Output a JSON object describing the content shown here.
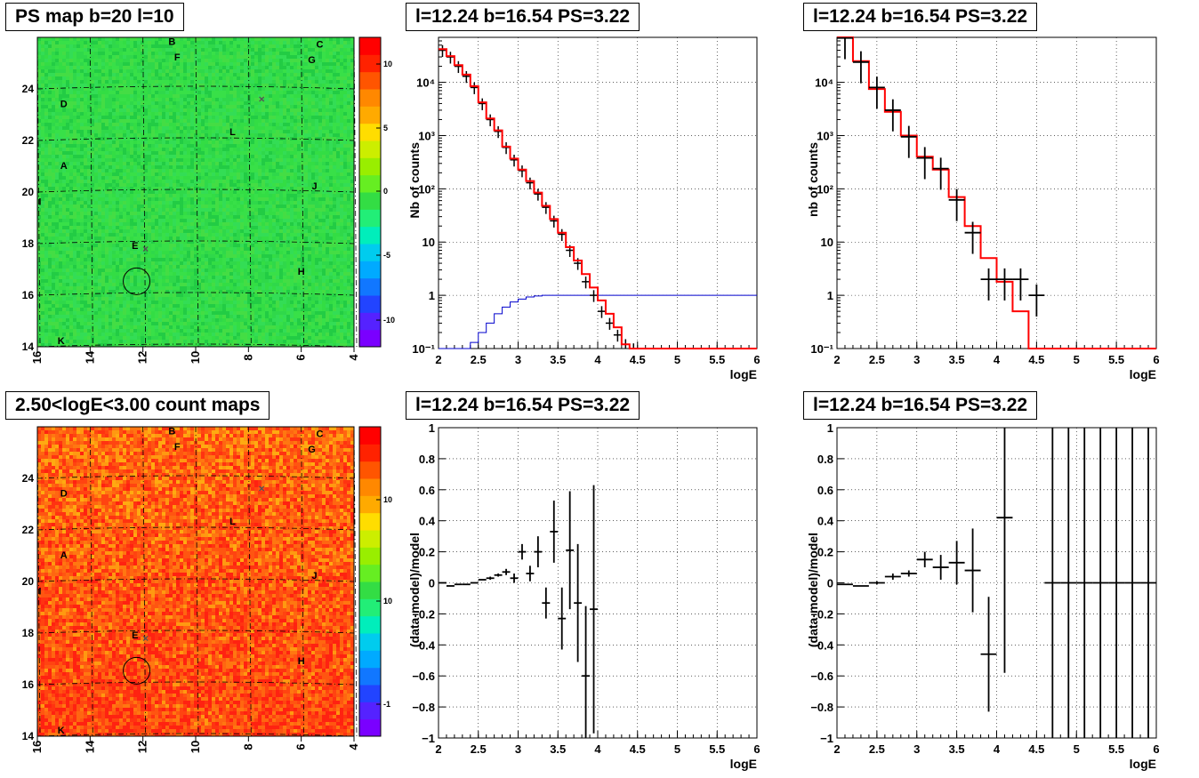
{
  "titles": {
    "psmap": "PS map b=20 l=10",
    "countmap": "2.50<logE<3.00 count maps",
    "spec1": "l=12.24 b=16.54 PS=3.22",
    "spec2": "l=12.24 b=16.54 PS=3.22",
    "res1": "l=12.24 b=16.54 PS=3.22",
    "res2": "l=12.24 b=16.54 PS=3.22"
  },
  "map_axes": {
    "x_ticks": [
      "16",
      "14",
      "12",
      "10",
      "8",
      "6",
      "4"
    ],
    "y_ticks": [
      "14",
      "16",
      "18",
      "20",
      "22",
      "24"
    ]
  },
  "psmap_colorbar_ticks": [
    "10",
    "5",
    "0",
    "-5",
    "-10"
  ],
  "countmap_colorbar_ticks": [
    "10",
    "1",
    "10",
    "-1"
  ],
  "map_labels": [
    "A",
    "B",
    "C",
    "D",
    "E",
    "F",
    "G",
    "H",
    "I",
    "J",
    "K",
    "L"
  ],
  "colors": {
    "model_line": "#ff0000",
    "acceptance_line": "#0000cc",
    "data": "#000000",
    "psmap_background": "#33dd44",
    "countmap_background": "#ff5522"
  },
  "chart_data": [
    {
      "type": "heatmap",
      "title": "PS map b=20 l=10",
      "xlim": [
        16,
        4
      ],
      "ylim": [
        14,
        26
      ],
      "zlim": [
        -13,
        13
      ],
      "grid": true,
      "sources": [
        {
          "label": "A",
          "l": 15.0,
          "b": 20.9
        },
        {
          "label": "B",
          "l": 10.9,
          "b": 25.7
        },
        {
          "label": "C",
          "l": 5.3,
          "b": 25.6
        },
        {
          "label": "D",
          "l": 15.0,
          "b": 23.3
        },
        {
          "label": "E",
          "l": 12.3,
          "b": 17.8
        },
        {
          "label": "F",
          "l": 10.7,
          "b": 25.1
        },
        {
          "label": "G",
          "l": 5.6,
          "b": 25.0
        },
        {
          "label": "H",
          "l": 6.0,
          "b": 16.8
        },
        {
          "label": "I",
          "l": 15.9,
          "b": 19.5
        },
        {
          "label": "J",
          "l": 5.5,
          "b": 20.1
        },
        {
          "label": "K",
          "l": 15.1,
          "b": 14.1
        },
        {
          "label": "L",
          "l": 8.6,
          "b": 22.2
        }
      ]
    },
    {
      "type": "line",
      "title": "l=12.24 b=16.54 PS=3.22",
      "xlabel": "logE",
      "ylabel": "Nb of counts",
      "xlim": [
        2,
        6
      ],
      "ylim": [
        0.1,
        70000
      ],
      "yscale": "log",
      "grid": true,
      "series": [
        {
          "values": [
            [
              2.05,
              40000,
              0.1
            ],
            [
              2.15,
              30000,
              0.1
            ],
            [
              2.25,
              20000,
              0.1
            ],
            [
              2.35,
              13000,
              0.1
            ],
            [
              2.45,
              8000,
              0.1
            ],
            [
              2.55,
              4000,
              0.1
            ],
            [
              2.65,
              2000,
              0.1
            ],
            [
              2.75,
              1200,
              0.1
            ],
            [
              2.85,
              600,
              0.1
            ],
            [
              2.95,
              350,
              0.1
            ],
            [
              3.05,
              220,
              0.1
            ],
            [
              3.15,
              130,
              0.1
            ],
            [
              3.25,
              80,
              0.1
            ],
            [
              3.35,
              45,
              0.1
            ],
            [
              3.45,
              25,
              0.1
            ],
            [
              3.55,
              14,
              0.1
            ],
            [
              3.65,
              7,
              0.1
            ],
            [
              3.75,
              4,
              0.1
            ],
            [
              3.85,
              1.8,
              0.1
            ],
            [
              3.95,
              1,
              0.1
            ],
            [
              4.05,
              0.5,
              0.1
            ],
            [
              4.15,
              0.3,
              0.1
            ],
            [
              4.25,
              0.18,
              0.1
            ],
            [
              4.35,
              0.12,
              0.1
            ],
            [
              4.45,
              0.1,
              0.1
            ]
          ]
        },
        {
          "values": [
            [
              2.05,
              0.1
            ],
            [
              2.15,
              0.1
            ],
            [
              2.25,
              0.1
            ],
            [
              2.35,
              0.1
            ],
            [
              2.45,
              0.13
            ],
            [
              2.55,
              0.2
            ],
            [
              2.65,
              0.3
            ],
            [
              2.75,
              0.45
            ],
            [
              2.85,
              0.6
            ],
            [
              2.95,
              0.75
            ],
            [
              3.05,
              0.85
            ],
            [
              3.15,
              0.93
            ],
            [
              3.25,
              0.97
            ],
            [
              3.35,
              1.0
            ],
            [
              3.45,
              1.0
            ],
            [
              3.55,
              1.0
            ],
            [
              3.65,
              1.0
            ],
            [
              3.75,
              1.0
            ],
            [
              3.85,
              1.0
            ],
            [
              3.95,
              1.0
            ],
            [
              4.05,
              1.0
            ],
            [
              4.15,
              1.0
            ],
            [
              4.25,
              1.0
            ]
          ]
        },
        {
          "values": [
            [
              2.05,
              42000
            ],
            [
              2.15,
              31000
            ],
            [
              2.25,
              21000
            ],
            [
              2.35,
              14000
            ],
            [
              2.45,
              8500
            ],
            [
              2.55,
              4200
            ],
            [
              2.65,
              2100
            ],
            [
              2.75,
              1250
            ],
            [
              2.85,
              620
            ],
            [
              2.95,
              370
            ],
            [
              3.05,
              230
            ],
            [
              3.15,
              140
            ],
            [
              3.25,
              85
            ],
            [
              3.35,
              48
            ],
            [
              3.45,
              27
            ],
            [
              3.55,
              15
            ],
            [
              3.65,
              8
            ],
            [
              3.75,
              4.5
            ],
            [
              3.85,
              2.5
            ],
            [
              3.95,
              1.4
            ],
            [
              4.05,
              0.8
            ],
            [
              4.15,
              0.45
            ],
            [
              4.25,
              0.25
            ],
            [
              4.35,
              0.12
            ],
            [
              4.45,
              0.1
            ]
          ]
        }
      ]
    },
    {
      "type": "line",
      "title": "l=12.24 b=16.54 PS=3.22",
      "xlabel": "logE",
      "ylabel": "nb of counts",
      "xlim": [
        2,
        6
      ],
      "ylim": [
        0.1,
        70000
      ],
      "yscale": "log",
      "grid": true,
      "series": [
        {
          "values": [
            [
              2.1,
              70000
            ],
            [
              2.3,
              25000
            ],
            [
              2.5,
              7500
            ],
            [
              2.7,
              2800
            ],
            [
              2.9,
              1000
            ],
            [
              3.1,
              400
            ],
            [
              3.3,
              230
            ],
            [
              3.5,
              70
            ],
            [
              3.7,
              20
            ],
            [
              3.9,
              5
            ],
            [
              4.1,
              1.8
            ],
            [
              4.3,
              0.5
            ],
            [
              4.5,
              0.1
            ]
          ]
        },
        {
          "values": [
            [
              2.1,
              68000
            ],
            [
              2.3,
              24000
            ],
            [
              2.5,
              8000
            ],
            [
              2.7,
              3000
            ],
            [
              2.9,
              950
            ],
            [
              3.1,
              380
            ],
            [
              3.3,
              240
            ],
            [
              3.5,
              62
            ],
            [
              3.7,
              15
            ],
            [
              3.9,
              2
            ],
            [
              4.1,
              2
            ],
            [
              4.3,
              2
            ],
            [
              4.5,
              1
            ]
          ]
        }
      ]
    },
    {
      "type": "scatter",
      "title": "l=12.24 b=16.54 PS=3.22",
      "xlabel": "logE",
      "ylabel": "(data-model)/model",
      "xlim": [
        2,
        6
      ],
      "ylim": [
        -1,
        1
      ],
      "grid": true,
      "series": [
        {
          "values": [
            [
              2.05,
              0.0,
              0.0
            ],
            [
              2.15,
              -0.02,
              0.0
            ],
            [
              2.25,
              -0.01,
              0.0
            ],
            [
              2.35,
              -0.01,
              0.0
            ],
            [
              2.45,
              0.0,
              0.0
            ],
            [
              2.55,
              0.02,
              0.0
            ],
            [
              2.65,
              0.03,
              0.01
            ],
            [
              2.75,
              0.05,
              0.01
            ],
            [
              2.85,
              0.07,
              0.02
            ],
            [
              2.95,
              0.03,
              0.03
            ],
            [
              3.05,
              0.2,
              0.05
            ],
            [
              3.15,
              0.06,
              0.05
            ],
            [
              3.25,
              0.2,
              0.1
            ],
            [
              3.35,
              -0.13,
              0.1
            ],
            [
              3.45,
              0.33,
              0.2
            ],
            [
              3.55,
              -0.23,
              0.2
            ],
            [
              3.65,
              0.21,
              0.38
            ],
            [
              3.75,
              -0.13,
              0.38
            ],
            [
              3.85,
              -0.6,
              0.45
            ],
            [
              3.95,
              -0.17,
              0.8
            ]
          ]
        }
      ]
    },
    {
      "type": "scatter",
      "title": "l=12.24 b=16.54 PS=3.22",
      "xlabel": "logE",
      "ylabel": "(data-model)/model",
      "xlim": [
        2,
        6
      ],
      "ylim": [
        -1,
        1
      ],
      "grid": true,
      "series": [
        {
          "values": [
            [
              2.1,
              -0.01,
              0.0
            ],
            [
              2.3,
              -0.02,
              0.0
            ],
            [
              2.5,
              0.0,
              0.01
            ],
            [
              2.7,
              0.04,
              0.02
            ],
            [
              2.9,
              0.06,
              0.02
            ],
            [
              3.1,
              0.15,
              0.05
            ],
            [
              3.3,
              0.1,
              0.08
            ],
            [
              3.5,
              0.13,
              0.14
            ],
            [
              3.7,
              0.08,
              0.27
            ],
            [
              3.9,
              -0.46,
              0.37
            ],
            [
              4.1,
              0.42,
              1.0
            ],
            [
              4.7,
              0.0,
              1.0
            ],
            [
              4.9,
              0.0,
              1.0
            ],
            [
              5.1,
              0.0,
              1.0
            ],
            [
              5.3,
              0.0,
              1.0
            ],
            [
              5.5,
              0.0,
              1.0
            ],
            [
              5.7,
              0.0,
              1.0
            ],
            [
              5.9,
              0.0,
              1.0
            ]
          ]
        }
      ]
    }
  ]
}
